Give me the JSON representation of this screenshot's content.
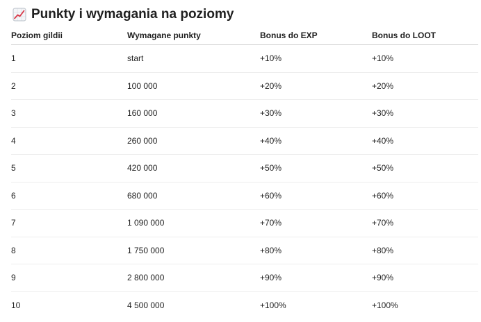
{
  "section": {
    "title": "Punkty i wymagania na poziomy",
    "icon": "chart-increasing-icon"
  },
  "table": {
    "headers": [
      "Poziom gildii",
      "Wymagane punkty",
      "Bonus do EXP",
      "Bonus do LOOT"
    ],
    "rows": [
      [
        "1",
        "start",
        "+10%",
        "+10%"
      ],
      [
        "2",
        "100 000",
        "+20%",
        "+20%"
      ],
      [
        "3",
        "160 000",
        "+30%",
        "+30%"
      ],
      [
        "4",
        "260 000",
        "+40%",
        "+40%"
      ],
      [
        "5",
        "420 000",
        "+50%",
        "+50%"
      ],
      [
        "6",
        "680 000",
        "+60%",
        "+60%"
      ],
      [
        "7",
        "1 090 000",
        "+70%",
        "+70%"
      ],
      [
        "8",
        "1 750 000",
        "+80%",
        "+80%"
      ],
      [
        "9",
        "2 800 000",
        "+90%",
        "+90%"
      ],
      [
        "10",
        "4 500 000",
        "+100%",
        "+100%"
      ]
    ]
  }
}
